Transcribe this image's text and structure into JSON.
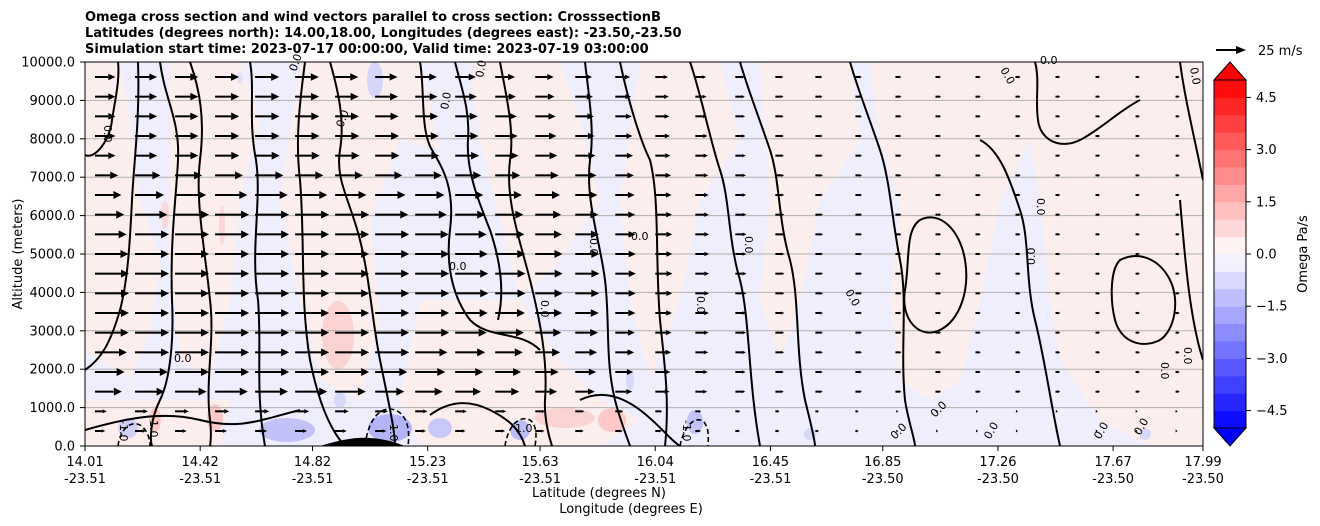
{
  "chart_data": {
    "type": "heatmap",
    "title_lines": [
      "Omega cross section and wind vectors parallel to cross section: CrosssectionB",
      "Latitudes (degrees north): 14.00,18.00, Longitudes (degrees east): -23.50,-23.50",
      "Simulation start time: 2023-07-17 00:00:00, Valid time: 2023-07-19 03:00:00"
    ],
    "xlabel_lines": [
      "Latitude (degrees N)",
      "Longitude (degrees E)"
    ],
    "ylabel": "Altitude (meters)",
    "x_ticks": [
      {
        "lat": "14.01",
        "lon": "-23.51"
      },
      {
        "lat": "14.42",
        "lon": "-23.51"
      },
      {
        "lat": "14.82",
        "lon": "-23.51"
      },
      {
        "lat": "15.23",
        "lon": "-23.51"
      },
      {
        "lat": "15.63",
        "lon": "-23.51"
      },
      {
        "lat": "16.04",
        "lon": "-23.51"
      },
      {
        "lat": "16.45",
        "lon": "-23.51"
      },
      {
        "lat": "16.85",
        "lon": "-23.50"
      },
      {
        "lat": "17.26",
        "lon": "-23.50"
      },
      {
        "lat": "17.67",
        "lon": "-23.50"
      },
      {
        "lat": "17.99",
        "lon": "-23.50"
      }
    ],
    "y_ticks": [
      "0.0",
      "1000.0",
      "2000.0",
      "3000.0",
      "4000.0",
      "5000.0",
      "6000.0",
      "7000.0",
      "8000.0",
      "9000.0",
      "10000.0"
    ],
    "xlim": [
      14.01,
      17.99
    ],
    "ylim": [
      0,
      10000
    ],
    "grid": "horizontal",
    "colorbar": {
      "label": "Omega Pa/s",
      "ticks": [
        "4.5",
        "3.0",
        "1.5",
        "0.0",
        "−1.5",
        "−3.0",
        "−4.5"
      ],
      "range": [
        -5,
        5
      ],
      "colormap": "bwr",
      "extend": "both"
    },
    "quiver_key": "25 m/s",
    "contour_labels": [
      "0.0",
      "1.0",
      "-1.0"
    ],
    "terrain_peak": {
      "lat": 15.0,
      "altitude": 200
    },
    "wind_vectors_summary": {
      "direction": "northward along section",
      "strongest_region": "14.01-15.0 N, 2500-7500 m",
      "weak_region": "16.8-18.0 N"
    },
    "omega_regions": [
      {
        "lat_range": [
          14.01,
          14.5
        ],
        "alt_range": [
          0,
          10000
        ],
        "sign": "mixed",
        "approx_value": 0.2
      },
      {
        "lat_range": [
          14.55,
          14.95
        ],
        "alt_range": [
          2000,
          6500
        ],
        "sign": "positive",
        "approx_value": 0.8
      },
      {
        "lat_range": [
          14.7,
          15.3
        ],
        "alt_range": [
          0,
          600
        ],
        "sign": "negative",
        "approx_value": -1.5
      },
      {
        "lat_range": [
          15.9,
          16.5
        ],
        "alt_range": [
          0,
          10000
        ],
        "sign": "mixed",
        "approx_value": 0.2
      },
      {
        "lat_range": [
          16.5,
          17.9
        ],
        "alt_range": [
          0,
          10000
        ],
        "sign": "mostly positive",
        "approx_value": 0.2
      }
    ]
  },
  "colors": {
    "positive_max": "#ff0000",
    "negative_max": "#0000ff",
    "neutral": "#ffffff",
    "light_positive": "#fdeeee",
    "light_negative": "#eeeefd",
    "contour": "#000000",
    "grid": "#b0b0b0"
  }
}
